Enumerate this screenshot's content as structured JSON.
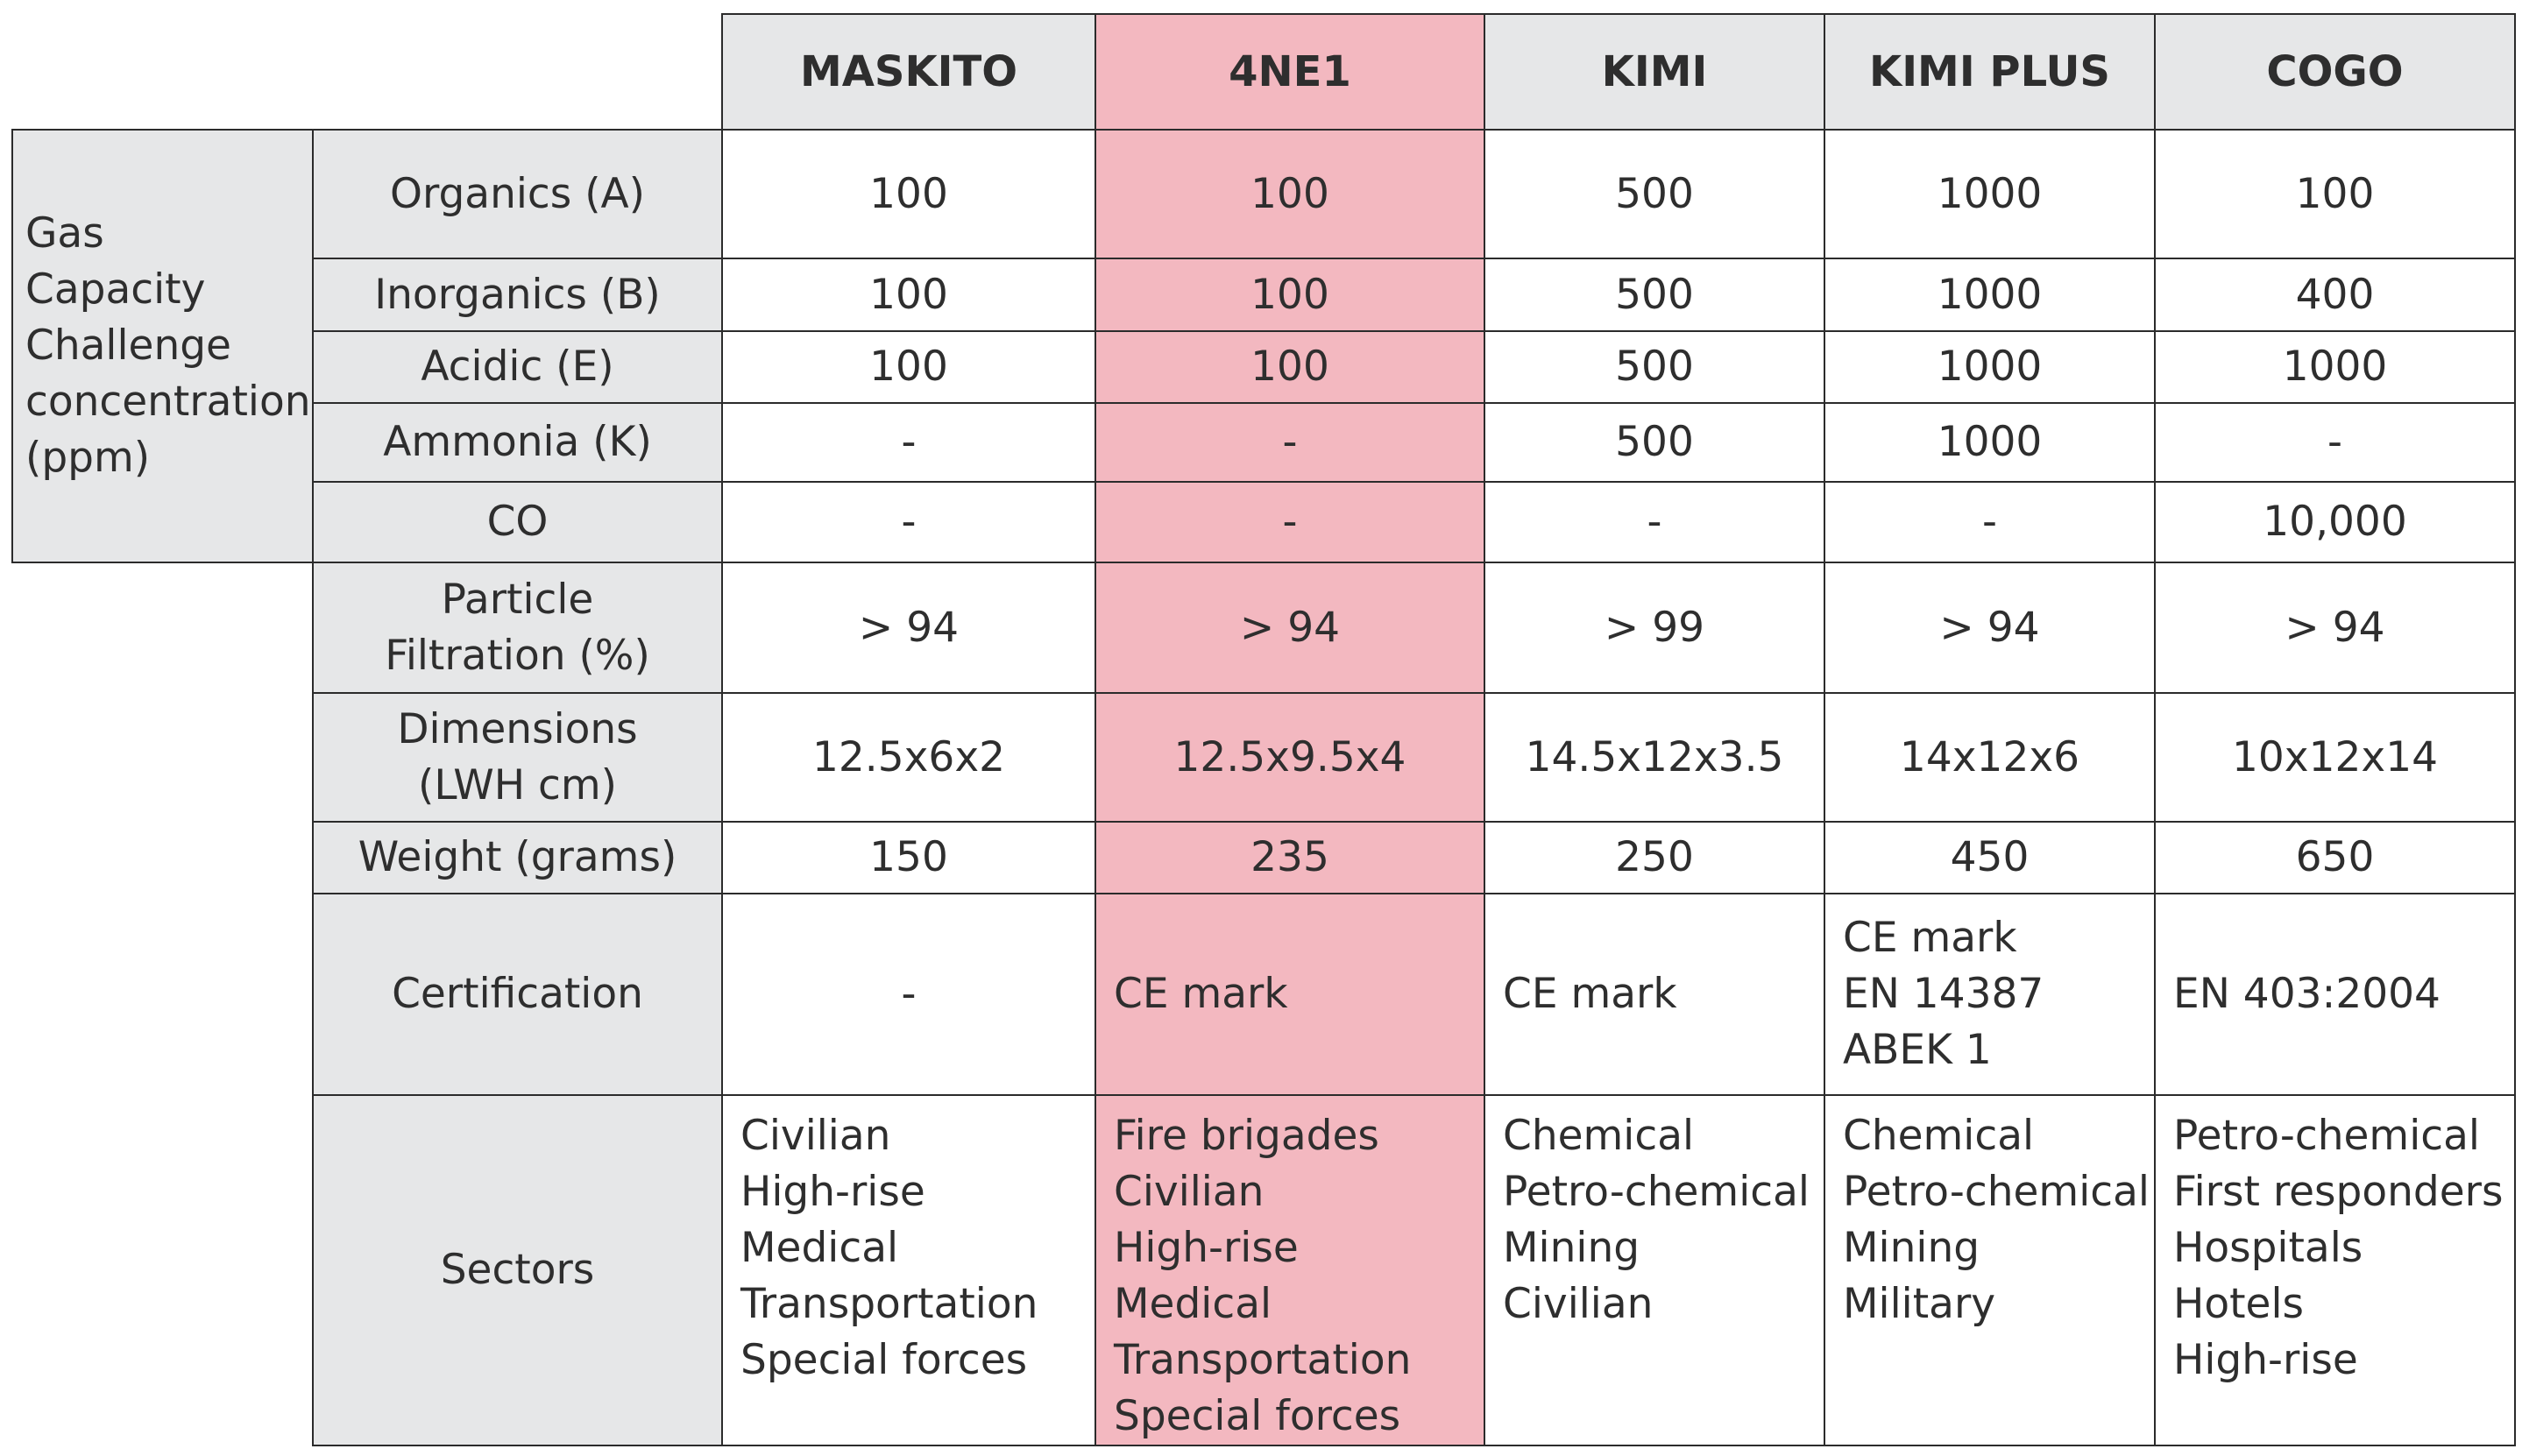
{
  "columns": [
    "MASKITO",
    "4NE1",
    "KIMI",
    "KIMI PLUS",
    "COGO"
  ],
  "gas_group_label": "Gas\nCapacity\nChallenge\nconcentration\n(ppm)",
  "rows": [
    {
      "label": "Organics (A)",
      "values": [
        "100",
        "100",
        "500",
        "1000",
        "100"
      ]
    },
    {
      "label": "Inorganics (B)",
      "values": [
        "100",
        "100",
        "500",
        "1000",
        "400"
      ]
    },
    {
      "label": "Acidic (E)",
      "values": [
        "100",
        "100",
        "500",
        "1000",
        "1000"
      ]
    },
    {
      "label": "Ammonia (K)",
      "values": [
        "-",
        "-",
        "500",
        "1000",
        "-"
      ]
    },
    {
      "label": "CO",
      "values": [
        "-",
        "-",
        "-",
        "-",
        "10,000"
      ]
    },
    {
      "label": "Particle\nFiltration (%)",
      "values": [
        "> 94",
        "> 94",
        "> 99",
        "> 94",
        "> 94"
      ]
    },
    {
      "label": "Dimensions\n(LWH cm)",
      "values": [
        "12.5x6x2",
        "12.5x9.5x4",
        "14.5x12x3.5",
        "14x12x6",
        "10x12x14"
      ]
    },
    {
      "label": "Weight (grams)",
      "values": [
        "150",
        "235",
        "250",
        "450",
        "650"
      ]
    },
    {
      "label": "Certification",
      "values": [
        "-",
        "CE mark",
        "CE mark",
        "CE mark\nEN 14387\nABEK 1",
        "EN 403:2004"
      ]
    },
    {
      "label": "Sectors",
      "values": [
        "Civilian\nHigh-rise\nMedical\nTransportation\nSpecial forces",
        "Fire brigades\nCivilian\nHigh-rise\nMedical\nTransportation\nSpecial forces",
        "Chemical\nPetro-chemical\nMining\nCivilian",
        "Chemical\nPetro-chemical\nMining\nMilitary",
        "Petro-chemical\nFirst responders\nHospitals\nHotels\nHigh-rise"
      ]
    }
  ],
  "colors": {
    "header_gray": "#e6e7e8",
    "highlight_pink": "#f3b8c0",
    "border": "#2b2b2b",
    "text": "#2e2e2e"
  }
}
